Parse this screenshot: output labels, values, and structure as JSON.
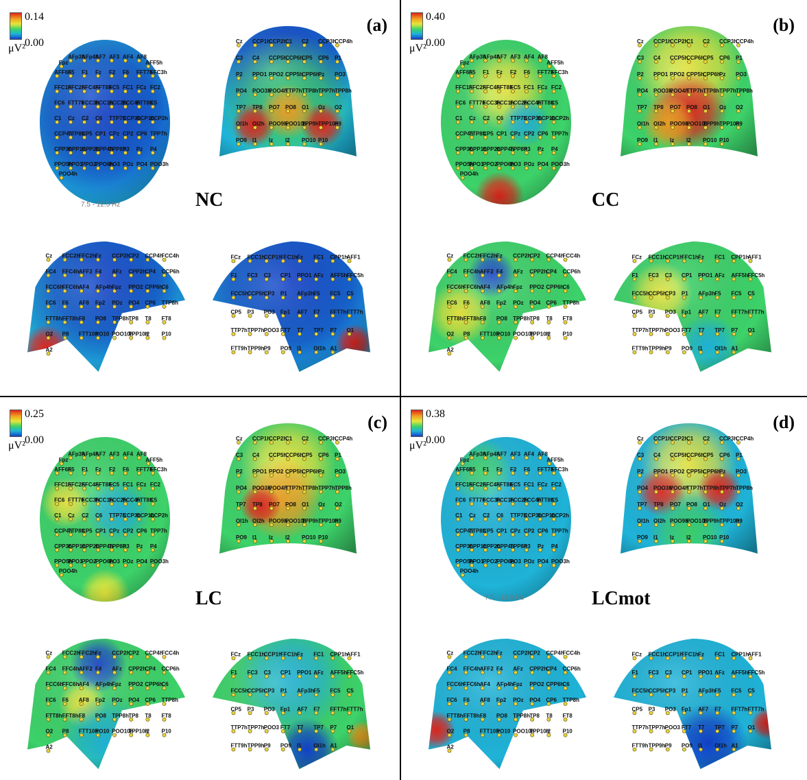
{
  "colorbar_unit": "μV²",
  "frequency_band": "7.5 - 12.5 Hz",
  "panels": [
    {
      "letter": "(a)",
      "group": "NC",
      "max": "0.14",
      "min": "0.00"
    },
    {
      "letter": "(b)",
      "group": "CC",
      "max": "0.40",
      "min": "0.00"
    },
    {
      "letter": "(c)",
      "group": "LC",
      "max": "0.25",
      "min": "0.00"
    },
    {
      "letter": "(d)",
      "group": "LCmot",
      "max": "0.38",
      "min": "0.00"
    }
  ],
  "colors": {
    "high": "#e0241c",
    "mid_high": "#f0a020",
    "mid": "#e8e63a",
    "mid_low": "#3dd26a",
    "low_mid": "#1fb3d8",
    "low": "#1240c8",
    "electrode": "#e8d43a"
  },
  "electrode_labels": {
    "top": [
      "Fpz",
      "AFp3h",
      "AFp4h",
      "AF7",
      "AF3",
      "AF4",
      "AF8",
      "AFF5h",
      "AFF6h",
      "F5",
      "F1",
      "Fz",
      "F2",
      "F6",
      "FFT7h",
      "FFC3h",
      "FFC1h",
      "FFC2h",
      "FFC4h",
      "FFT8h",
      "FC5",
      "FC1",
      "FCz",
      "FC2",
      "FC6",
      "FTT7h",
      "FCC3h",
      "FCC1h",
      "FCC2h",
      "FCC4h",
      "FTT8h",
      "C5",
      "C1",
      "Cz",
      "C2",
      "C6",
      "TTP7h",
      "CCP3h",
      "CCP1h",
      "CCP2h",
      "CCP4h",
      "TTP8h",
      "CP5",
      "CP1",
      "CPz",
      "CP2",
      "CP6",
      "TPP7h",
      "CPP3h",
      "CPP1h",
      "CPP2h",
      "CPP4h",
      "TPP8h",
      "P3",
      "Pz",
      "P4",
      "PPO5h",
      "PPO1",
      "PPO2",
      "PPO6h",
      "PO3",
      "POz",
      "PO4",
      "POO3h",
      "POO4h"
    ],
    "back": [
      "Cz",
      "CCP1h",
      "CCP2h",
      "C1",
      "C2",
      "CCP3h",
      "CCP4h",
      "C3",
      "C4",
      "CCP5h",
      "CCP6h",
      "CP5",
      "CP6",
      "P1",
      "P2",
      "PPO1",
      "PPO2",
      "CPP5h",
      "CPP6h",
      "Pz",
      "PO3",
      "PO4",
      "POO3h",
      "POO4h",
      "TTP7h",
      "TTP8h",
      "TPP7h",
      "TPP8h",
      "TP7",
      "TP8",
      "PO7",
      "PO8",
      "O1",
      "Oz",
      "O2",
      "OI1h",
      "OI2h",
      "POO9h",
      "POO10h",
      "TPP9h",
      "TPP10h",
      "P9",
      "PO9",
      "I1",
      "Iz",
      "I2",
      "PO10",
      "P10"
    ],
    "right": [
      "Cz",
      "FCC2h",
      "FFC2h",
      "Fz",
      "CCP2h",
      "CP2",
      "CCP4h",
      "FCC4h",
      "FC4",
      "FFC4h",
      "AFF2",
      "F4",
      "AFz",
      "CPP2h",
      "CP4",
      "CCP6h",
      "FCC6h",
      "FFC6h",
      "AF4",
      "AFp4h",
      "Fpz",
      "PPO2",
      "CPP6h",
      "C6",
      "FC6",
      "F6",
      "AF8",
      "Fp2",
      "POz",
      "PO4",
      "CP6",
      "TTP8h",
      "FTT8h",
      "FFT8h",
      "F8",
      "PO8",
      "TPP8h",
      "TP8",
      "T8",
      "FT8",
      "O2",
      "P8",
      "FTT10h",
      "PO10",
      "POO10h",
      "TPP10h",
      "I2",
      "P10",
      "A2"
    ],
    "left": [
      "FCz",
      "FCC1h",
      "CCP1h",
      "FFC1h",
      "Fz",
      "FC1",
      "CPP1h",
      "AFF1",
      "F1",
      "FC3",
      "C3",
      "CP1",
      "PPO1",
      "AFz",
      "AFF5h",
      "FFC5h",
      "FCC5h",
      "CCP5h",
      "CP3",
      "P1",
      "AFp3h",
      "F5",
      "FC5",
      "C5",
      "CP5",
      "P3",
      "PO3",
      "Fp1",
      "AF7",
      "F7",
      "FFT7h",
      "FTT7h",
      "TTP7h",
      "TPP7h",
      "POO3",
      "FT7",
      "T7",
      "TP7",
      "P7",
      "O1",
      "FTT9h",
      "TPP9h",
      "P9",
      "PO9",
      "I1",
      "OI1h",
      "A1"
    ]
  }
}
